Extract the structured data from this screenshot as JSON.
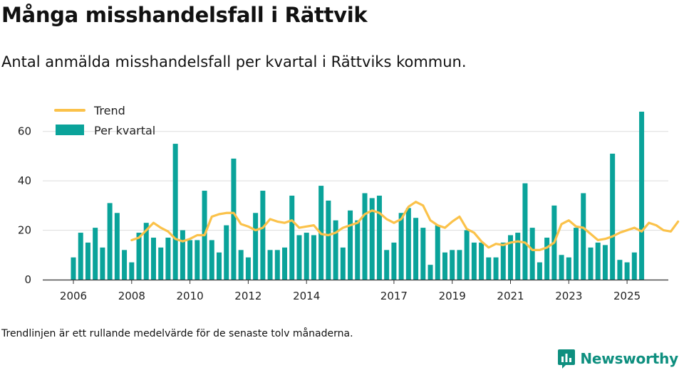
{
  "header": {
    "title": "Många misshandelsfall i Rättvik",
    "subtitle": "Antal anmälda misshandelsfall per kvartal i Rättviks kommun."
  },
  "footer": {
    "note": "Trendlinjen är ett rullande medelvärde för de senaste tolv månaderna.",
    "brand": "Newsworthy",
    "brand_icon": "newsworthy-logo-icon"
  },
  "colors": {
    "bar": "#0aa39a",
    "trend": "#fbc24a",
    "grid": "#dddddd",
    "axis": "#333333",
    "brand": "#0e8f7f"
  },
  "chart_data": {
    "type": "bar",
    "title": "Antal anmälda misshandelsfall per kvartal i Rättviks kommun.",
    "xlabel": "",
    "ylabel": "",
    "ylim": [
      0,
      70
    ],
    "yticks": [
      0,
      20,
      40,
      60
    ],
    "grid": true,
    "legend_position": "top-left",
    "x_start": 2006.0,
    "x_step": 0.25,
    "x_ticks": [
      {
        "label": "2006",
        "x": 2006.0
      },
      {
        "label": "2008",
        "x": 2008.0
      },
      {
        "label": "2010",
        "x": 2010.0
      },
      {
        "label": "2012",
        "x": 2012.0
      },
      {
        "label": "2014",
        "x": 2014.0
      },
      {
        "label": "2017",
        "x": 2017.0
      },
      {
        "label": "2019",
        "x": 2019.0
      },
      {
        "label": "2021",
        "x": 2021.0
      },
      {
        "label": "2023",
        "x": 2023.0
      },
      {
        "label": "2025",
        "x": 2025.0
      }
    ],
    "series": [
      {
        "name": "Per kvartal",
        "type": "bar",
        "values": [
          9,
          19,
          15,
          21,
          13,
          31,
          27,
          12,
          7,
          19,
          23,
          17,
          13,
          17,
          55,
          20,
          16,
          16,
          36,
          16,
          11,
          22,
          49,
          12,
          9,
          27,
          36,
          12,
          12,
          13,
          34,
          18,
          19,
          18,
          38,
          32,
          24,
          13,
          28,
          24,
          35,
          33,
          34,
          12,
          15,
          27,
          29,
          25,
          21,
          6,
          22,
          11,
          12,
          12,
          20,
          15,
          15,
          9,
          9,
          15,
          18,
          19,
          39,
          21,
          7,
          17,
          30,
          10,
          9,
          21,
          35,
          13,
          15,
          14,
          51,
          8,
          7,
          11,
          68
        ]
      },
      {
        "name": "Trend",
        "type": "line",
        "start_index": 8,
        "values": [
          16,
          17,
          20,
          23,
          21,
          19.5,
          16.5,
          15.5,
          16.5,
          18,
          18,
          25.5,
          26.5,
          27,
          27,
          22.5,
          21.5,
          20,
          21,
          24.5,
          23.5,
          23,
          24,
          21,
          21.5,
          22,
          18.5,
          18,
          19,
          21,
          22,
          23,
          26.5,
          28,
          27,
          24.5,
          23,
          24.5,
          29.5,
          31.5,
          30,
          24,
          22,
          21,
          23.5,
          25.5,
          20.5,
          19,
          15.5,
          13,
          14.5,
          14,
          15,
          15.5,
          15,
          12,
          12,
          13,
          15,
          22.5,
          24,
          21.5,
          21,
          18.5,
          16,
          16.5,
          17.5,
          19,
          20,
          21,
          19.5,
          23,
          22,
          20,
          19.5,
          23.5
        ]
      }
    ]
  }
}
